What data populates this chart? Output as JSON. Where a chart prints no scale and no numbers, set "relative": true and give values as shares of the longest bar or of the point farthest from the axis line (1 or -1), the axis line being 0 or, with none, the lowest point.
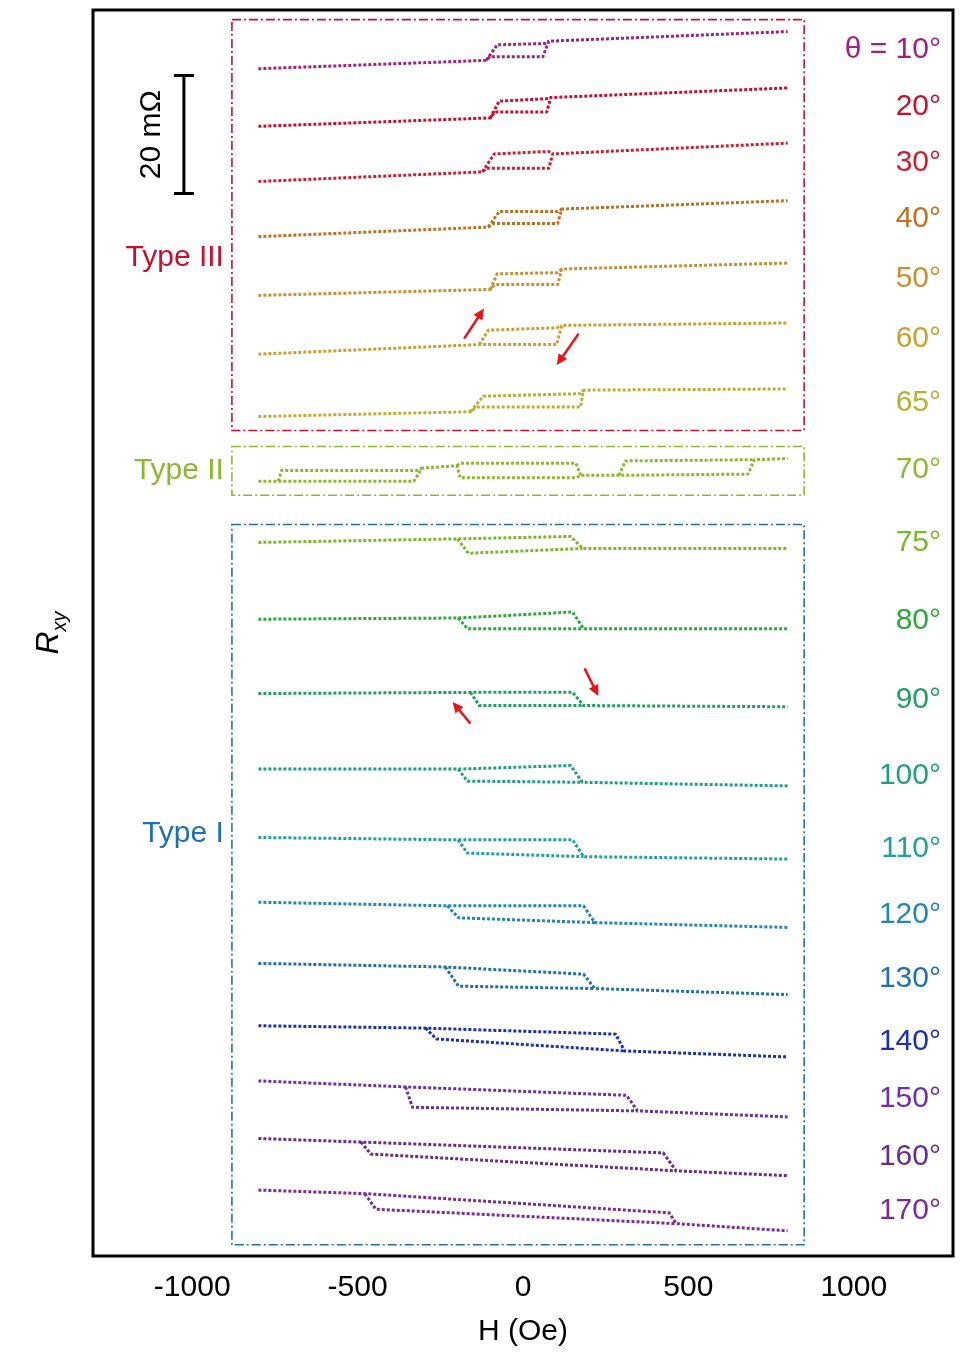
{
  "chart_data": {
    "type": "line",
    "relative": true,
    "xlabel": "H (Oe)",
    "ylabel": "R$_{xy}$",
    "xlim": [
      -1300,
      1300
    ],
    "xticks": [
      -1000,
      -500,
      0,
      500,
      1000
    ],
    "tick_labels": "x",
    "grid": false,
    "legend": false,
    "marker": "none",
    "line_style": "dotted",
    "annotations": [
      "Type III",
      "Type II",
      "Type I",
      "20 mΩ"
    ],
    "series": [
      {
        "name": "θ = 10°",
        "color": "#a3207e",
        "x": [
          -800,
          -111,
          -100,
          60,
          78,
          800
        ],
        "values": [
          0.969,
          0.976,
          0.979,
          0.979,
          0.992,
          1
        ]
      },
      {
        "color": "#a3207e",
        "x": [
          -111,
          -78,
          66,
          78
        ],
        "values": [
          0.976,
          0.989,
          0.99,
          0.992
        ]
      },
      {
        "name": "20°",
        "color": "#c8102e",
        "x": [
          -800,
          -99,
          -85,
          72,
          84,
          800
        ],
        "values": [
          0.921,
          0.928,
          0.933,
          0.933,
          0.945,
          0.953
        ]
      },
      {
        "color": "#c8102e",
        "x": [
          -99,
          -72,
          72,
          84
        ],
        "values": [
          0.928,
          0.942,
          0.944,
          0.945
        ]
      },
      {
        "name": "30°",
        "color": "#cc2030",
        "x": [
          -800,
          -123,
          -110,
          78,
          90,
          800
        ],
        "values": [
          0.875,
          0.883,
          0.886,
          0.886,
          0.898,
          0.907
        ]
      },
      {
        "color": "#cc2030",
        "x": [
          -123,
          -87,
          78,
          90
        ],
        "values": [
          0.883,
          0.898,
          0.9,
          0.898
        ]
      },
      {
        "name": "40°",
        "color": "#c0701e",
        "x": [
          -800,
          -105,
          -90,
          105,
          117,
          800
        ],
        "values": [
          0.829,
          0.837,
          0.84,
          0.84,
          0.852,
          0.859
        ]
      },
      {
        "color": "#c0701e",
        "x": [
          -105,
          -72,
          105,
          117
        ],
        "values": [
          0.837,
          0.85,
          0.85,
          0.852
        ]
      },
      {
        "name": "50°",
        "color": "#c89030",
        "x": [
          -800,
          -99,
          -85,
          105,
          117,
          800
        ],
        "values": [
          0.78,
          0.785,
          0.789,
          0.789,
          0.802,
          0.807
        ]
      },
      {
        "color": "#c89030",
        "x": [
          -99,
          -78,
          105,
          117
        ],
        "values": [
          0.785,
          0.798,
          0.799,
          0.802
        ]
      },
      {
        "name": "60°",
        "color": "#c8a030",
        "x": [
          -800,
          -132,
          -115,
          102,
          117,
          800
        ],
        "values": [
          0.731,
          0.739,
          0.739,
          0.739,
          0.755,
          0.757
        ]
      },
      {
        "color": "#c8a030",
        "x": [
          -132,
          -105,
          102,
          117
        ],
        "values": [
          0.739,
          0.751,
          0.753,
          0.755
        ]
      },
      {
        "name": "65°",
        "color": "#b8b030",
        "x": [
          -800,
          -159,
          -140,
          174,
          183,
          800
        ],
        "values": [
          0.679,
          0.683,
          0.687,
          0.687,
          0.701,
          0.702
        ]
      },
      {
        "color": "#b8b030",
        "x": [
          -159,
          -120,
          174,
          183
        ],
        "values": [
          0.683,
          0.696,
          0.698,
          0.701
        ]
      },
      {
        "name": "70°",
        "color": "#8cb830",
        "x": [
          -800,
          -740,
          -330,
          -305,
          -200,
          -190,
          160,
          175,
          290,
          680,
          700,
          800
        ],
        "values": [
          0.625,
          0.625,
          0.625,
          0.636,
          0.638,
          0.628,
          0.628,
          0.63,
          0.63,
          0.631,
          0.643,
          0.644
        ]
      },
      {
        "color": "#8cb830",
        "x": [
          -740,
          -730,
          -320,
          -305,
          -250,
          -200,
          -190,
          160,
          175,
          230,
          290,
          310,
          700
        ],
        "values": [
          0.625,
          0.634,
          0.634,
          0.636,
          null,
          0.638,
          0.64,
          0.64,
          0.63,
          null,
          0.63,
          0.642,
          0.643
        ]
      },
      {
        "name": "75°",
        "color": "#7ab828",
        "x": [
          -800,
          -198,
          144,
          180,
          800
        ],
        "values": [
          0.574,
          0.577,
          0.579,
          0.569,
          0.569
        ]
      },
      {
        "color": "#7ab828",
        "x": [
          -198,
          -165,
          180
        ],
        "values": [
          0.577,
          0.565,
          0.569
        ]
      },
      {
        "name": "80°",
        "color": "#2ea83a",
        "x": [
          -800,
          -196,
          150,
          183,
          800
        ],
        "values": [
          0.51,
          0.511,
          0.516,
          0.502,
          0.502
        ]
      },
      {
        "color": "#2ea83a",
        "x": [
          -196,
          -168,
          183
        ],
        "values": [
          0.511,
          0.502,
          0.502
        ]
      },
      {
        "name": "90°",
        "color": "#20a060",
        "x": [
          -800,
          -159,
          150,
          183,
          800
        ],
        "values": [
          0.448,
          0.449,
          0.449,
          0.438,
          0.437
        ]
      },
      {
        "color": "#20a060",
        "x": [
          -159,
          -132,
          183
        ],
        "values": [
          0.449,
          0.438,
          0.438
        ]
      },
      {
        "name": "100°",
        "color": "#20a080",
        "x": [
          -800,
          -196,
          144,
          180,
          800
        ],
        "values": [
          0.385,
          0.385,
          0.388,
          0.374,
          0.371
        ]
      },
      {
        "color": "#20a080",
        "x": [
          -196,
          -168,
          180
        ],
        "values": [
          0.385,
          0.375,
          0.374
        ]
      },
      {
        "name": "110°",
        "color": "#20a0a0",
        "x": [
          -800,
          -196,
          150,
          183,
          800
        ],
        "values": [
          0.328,
          0.326,
          0.326,
          0.312,
          0.31
        ]
      },
      {
        "color": "#20a0a0",
        "x": [
          -196,
          -168,
          183
        ],
        "values": [
          0.326,
          0.315,
          0.312
        ]
      },
      {
        "name": "120°",
        "color": "#2088b8",
        "x": [
          -800,
          -229,
          183,
          217,
          800
        ],
        "values": [
          0.274,
          0.271,
          0.271,
          0.257,
          0.253
        ]
      },
      {
        "color": "#2088b8",
        "x": [
          -229,
          -195,
          217
        ],
        "values": [
          0.271,
          0.261,
          0.257
        ]
      },
      {
        "name": "130°",
        "color": "#2070b0",
        "x": [
          -800,
          -235,
          183,
          217,
          800
        ],
        "values": [
          0.223,
          0.22,
          0.214,
          0.202,
          0.197
        ]
      },
      {
        "color": "#2070b0",
        "x": [
          -235,
          -195,
          217
        ],
        "values": [
          0.22,
          0.204,
          0.202
        ]
      },
      {
        "name": "140°",
        "color": "#1a30b0",
        "x": [
          -800,
          -295,
          280,
          307,
          800
        ],
        "values": [
          0.171,
          0.169,
          0.164,
          0.15,
          0.145
        ]
      },
      {
        "color": "#1a30b0",
        "x": [
          -295,
          -262,
          307
        ],
        "values": [
          0.169,
          0.16,
          0.15
        ]
      },
      {
        "name": "150°",
        "color": "#6a30b0",
        "x": [
          -800,
          -355,
          313,
          346,
          800
        ],
        "values": [
          0.125,
          0.12,
          0.113,
          0.1,
          0.095
        ]
      },
      {
        "color": "#6a30b0",
        "x": [
          -355,
          -334,
          346
        ],
        "values": [
          0.12,
          0.103,
          0.1
        ]
      },
      {
        "name": "160°",
        "color": "#6a2a90",
        "x": [
          -800,
          -490,
          424,
          463,
          800
        ],
        "values": [
          0.077,
          0.074,
          0.065,
          0.05,
          0.046
        ]
      },
      {
        "color": "#6a2a90",
        "x": [
          -490,
          -460,
          463
        ],
        "values": [
          0.074,
          0.064,
          0.05
        ]
      },
      {
        "name": "170°",
        "color": "#7a2a9a",
        "x": [
          -800,
          -478,
          442,
          463,
          800
        ],
        "values": [
          0.034,
          0.031,
          0.015,
          0.006,
          0
        ]
      },
      {
        "color": "#7a2a9a",
        "x": [
          -478,
          -445,
          463
        ],
        "values": [
          0.031,
          0.018,
          0.006
        ]
      }
    ]
  }
}
